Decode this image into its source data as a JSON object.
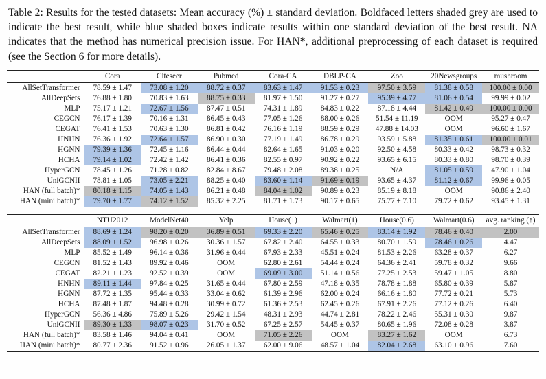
{
  "caption": "Table 2: Results for the tested datasets: Mean accuracy (%) ± standard deviation. Boldfaced letters shaded grey are used to indicate the best result, while blue shaded boxes indicate results within one standard deviation of the best result. NA indicates that the method has numerical precision issue. For HAN*, additional preprocessing of each dataset is required (see the Section 6 for more details).",
  "colors": {
    "best_bg": "#c2c2c2",
    "std_bg": "#aec5e6"
  },
  "tables": [
    {
      "columns": [
        "Cora",
        "Citeseer",
        "Pubmed",
        "Cora-CA",
        "DBLP-CA",
        "Zoo",
        "20Newsgroups",
        "mushroom"
      ],
      "rows": [
        {
          "label": "AllSetTransformer",
          "cells": [
            [
              "78.59 ± 1.47",
              ""
            ],
            [
              "73.08 ± 1.20",
              "std"
            ],
            [
              "88.72 ± 0.37",
              "std"
            ],
            [
              "83.63 ± 1.47",
              "std"
            ],
            [
              "91.53 ± 0.23",
              "std"
            ],
            [
              "97.50 ± 3.59",
              "best"
            ],
            [
              "81.38 ± 0.58",
              "std"
            ],
            [
              "100.00 ± 0.00",
              "best"
            ]
          ]
        },
        {
          "label": "AllDeepSets",
          "cells": [
            [
              "76.88 ± 1.80",
              ""
            ],
            [
              "70.83 ± 1.63",
              ""
            ],
            [
              "88.75 ± 0.33",
              "best"
            ],
            [
              "81.97 ± 1.50",
              ""
            ],
            [
              "91.27 ± 0.27",
              ""
            ],
            [
              "95.39 ± 4.77",
              "std"
            ],
            [
              "81.06 ± 0.54",
              "std"
            ],
            [
              "99.99 ± 0.02",
              ""
            ]
          ]
        },
        {
          "label": "MLP",
          "cells": [
            [
              "75.17 ± 1.21",
              ""
            ],
            [
              "72.67 ± 1.56",
              "std"
            ],
            [
              "87.47 ± 0.51",
              ""
            ],
            [
              "74.31 ± 1.89",
              ""
            ],
            [
              "84.83 ± 0.22",
              ""
            ],
            [
              "87.18 ± 4.44",
              ""
            ],
            [
              "81.42 ± 0.49",
              "best"
            ],
            [
              "100.00 ± 0.00",
              "best"
            ]
          ]
        },
        {
          "label": "CEGCN",
          "cells": [
            [
              "76.17 ± 1.39",
              ""
            ],
            [
              "70.16 ± 1.31",
              ""
            ],
            [
              "86.45 ± 0.43",
              ""
            ],
            [
              "77.05 ± 1.26",
              ""
            ],
            [
              "88.00 ± 0.26",
              ""
            ],
            [
              "51.54 ± 11.19",
              ""
            ],
            [
              "OOM",
              ""
            ],
            [
              "95.27 ± 0.47",
              ""
            ]
          ]
        },
        {
          "label": "CEGAT",
          "cells": [
            [
              "76.41 ± 1.53",
              ""
            ],
            [
              "70.63 ± 1.30",
              ""
            ],
            [
              "86.81 ± 0.42",
              ""
            ],
            [
              "76.16 ± 1.19",
              ""
            ],
            [
              "88.59 ± 0.29",
              ""
            ],
            [
              "47.88 ± 14.03",
              ""
            ],
            [
              "OOM",
              ""
            ],
            [
              "96.60 ± 1.67",
              ""
            ]
          ]
        },
        {
          "label": "HNHN",
          "cells": [
            [
              "76.36 ± 1.92",
              ""
            ],
            [
              "72.64 ± 1.57",
              "std"
            ],
            [
              "86.90 ± 0.30",
              ""
            ],
            [
              "77.19 ± 1.49",
              ""
            ],
            [
              "86.78 ± 0.29",
              ""
            ],
            [
              "93.59 ± 5.88",
              ""
            ],
            [
              "81.35 ± 0.61",
              "std"
            ],
            [
              "100.00 ± 0.01",
              "best"
            ]
          ]
        },
        {
          "label": "HGNN",
          "cells": [
            [
              "79.39 ± 1.36",
              "std"
            ],
            [
              "72.45 ± 1.16",
              ""
            ],
            [
              "86.44 ± 0.44",
              ""
            ],
            [
              "82.64 ± 1.65",
              ""
            ],
            [
              "91.03 ± 0.20",
              ""
            ],
            [
              "92.50 ± 4.58",
              ""
            ],
            [
              "80.33 ± 0.42",
              ""
            ],
            [
              "98.73 ± 0.32",
              ""
            ]
          ]
        },
        {
          "label": "HCHA",
          "cells": [
            [
              "79.14 ± 1.02",
              "std"
            ],
            [
              "72.42 ± 1.42",
              ""
            ],
            [
              "86.41 ± 0.36",
              ""
            ],
            [
              "82.55 ± 0.97",
              ""
            ],
            [
              "90.92 ± 0.22",
              ""
            ],
            [
              "93.65 ± 6.15",
              ""
            ],
            [
              "80.33 ± 0.80",
              ""
            ],
            [
              "98.70 ± 0.39",
              ""
            ]
          ]
        },
        {
          "label": "HyperGCN",
          "cells": [
            [
              "78.45 ± 1.26",
              ""
            ],
            [
              "71.28 ± 0.82",
              ""
            ],
            [
              "82.84 ± 8.67",
              ""
            ],
            [
              "79.48 ± 2.08",
              ""
            ],
            [
              "89.38 ± 0.25",
              ""
            ],
            [
              "N/A",
              ""
            ],
            [
              "81.05 ± 0.59",
              "std"
            ],
            [
              "47.90 ± 1.04",
              ""
            ]
          ]
        },
        {
          "label": "UniGCNII",
          "cells": [
            [
              "78.81 ± 1.05",
              ""
            ],
            [
              "73.05 ± 2.21",
              "std"
            ],
            [
              "88.25 ± 0.40",
              ""
            ],
            [
              "83.60 ± 1.14",
              "std"
            ],
            [
              "91.69 ± 0.19",
              "best"
            ],
            [
              "93.65 ± 4.37",
              ""
            ],
            [
              "81.12 ± 0.67",
              "std"
            ],
            [
              "99.96 ± 0.05",
              ""
            ]
          ]
        },
        {
          "label": "HAN (full batch)*",
          "cells": [
            [
              "80.18 ± 1.15",
              "best"
            ],
            [
              "74.05 ± 1.43",
              "std"
            ],
            [
              "86.21 ± 0.48",
              ""
            ],
            [
              "84.04 ± 1.02",
              "best"
            ],
            [
              "90.89 ± 0.23",
              ""
            ],
            [
              "85.19 ± 8.18",
              ""
            ],
            [
              "OOM",
              ""
            ],
            [
              "90.86 ± 2.40",
              ""
            ]
          ]
        },
        {
          "label": "HAN (mini batch)*",
          "cells": [
            [
              "79.70 ± 1.77",
              "std"
            ],
            [
              "74.12 ± 1.52",
              "best"
            ],
            [
              "85.32 ± 2.25",
              ""
            ],
            [
              "81.71 ± 1.73",
              ""
            ],
            [
              "90.17 ± 0.65",
              ""
            ],
            [
              "75.77 ± 7.10",
              ""
            ],
            [
              "79.72 ± 0.62",
              ""
            ],
            [
              "93.45 ± 1.31",
              ""
            ]
          ]
        }
      ]
    },
    {
      "columns": [
        "NTU2012",
        "ModelNet40",
        "Yelp",
        "House(1)",
        "Walmart(1)",
        "House(0.6)",
        "Walmart(0.6)",
        "avg. ranking (↑)"
      ],
      "rows": [
        {
          "label": "AllSetTransformer",
          "cells": [
            [
              "88.69 ± 1.24",
              "std"
            ],
            [
              "98.20 ± 0.20",
              "best"
            ],
            [
              "36.89 ± 0.51",
              "best"
            ],
            [
              "69.33 ± 2.20",
              "std"
            ],
            [
              "65.46 ± 0.25",
              "best"
            ],
            [
              "83.14 ± 1.92",
              "std"
            ],
            [
              "78.46 ± 0.40",
              "best"
            ],
            [
              "2.00",
              "best"
            ]
          ]
        },
        {
          "label": "AllDeepSets",
          "cells": [
            [
              "88.09 ± 1.52",
              "std"
            ],
            [
              "96.98 ± 0.26",
              ""
            ],
            [
              "30.36 ± 1.57",
              ""
            ],
            [
              "67.82 ± 2.40",
              ""
            ],
            [
              "64.55 ± 0.33",
              ""
            ],
            [
              "80.70 ± 1.59",
              ""
            ],
            [
              "78.46 ± 0.26",
              "std"
            ],
            [
              "4.47",
              ""
            ]
          ]
        },
        {
          "label": "MLP",
          "cells": [
            [
              "85.52 ± 1.49",
              ""
            ],
            [
              "96.14 ± 0.36",
              ""
            ],
            [
              "31.96 ± 0.44",
              ""
            ],
            [
              "67.93 ± 2.33",
              ""
            ],
            [
              "45.51 ± 0.24",
              ""
            ],
            [
              "81.53 ± 2.26",
              ""
            ],
            [
              "63.28 ± 0.37",
              ""
            ],
            [
              "6.27",
              ""
            ]
          ]
        },
        {
          "label": "CEGCN",
          "cells": [
            [
              "81.52 ± 1.43",
              ""
            ],
            [
              "89.92 ± 0.46",
              ""
            ],
            [
              "OOM",
              ""
            ],
            [
              "62.80 ± 2.61",
              ""
            ],
            [
              "54.44 ± 0.24",
              ""
            ],
            [
              "64.36 ± 2.41",
              ""
            ],
            [
              "59.78 ± 0.32",
              ""
            ],
            [
              "9.66",
              ""
            ]
          ]
        },
        {
          "label": "CEGAT",
          "cells": [
            [
              "82.21 ± 1.23",
              ""
            ],
            [
              "92.52 ± 0.39",
              ""
            ],
            [
              "OOM",
              ""
            ],
            [
              "69.09 ± 3.00",
              "std"
            ],
            [
              "51.14 ± 0.56",
              ""
            ],
            [
              "77.25 ± 2.53",
              ""
            ],
            [
              "59.47 ± 1.05",
              ""
            ],
            [
              "8.80",
              ""
            ]
          ]
        },
        {
          "label": "HNHN",
          "cells": [
            [
              "89.11 ± 1.44",
              "std"
            ],
            [
              "97.84 ± 0.25",
              ""
            ],
            [
              "31.65 ± 0.44",
              ""
            ],
            [
              "67.80 ± 2.59",
              ""
            ],
            [
              "47.18 ± 0.35",
              ""
            ],
            [
              "78.78 ± 1.88",
              ""
            ],
            [
              "65.80 ± 0.39",
              ""
            ],
            [
              "5.87",
              ""
            ]
          ]
        },
        {
          "label": "HGNN",
          "cells": [
            [
              "87.72 ± 1.35",
              ""
            ],
            [
              "95.44 ± 0.33",
              ""
            ],
            [
              "33.04 ± 0.62",
              ""
            ],
            [
              "61.39 ± 2.96",
              ""
            ],
            [
              "62.00 ± 0.24",
              ""
            ],
            [
              "66.16 ± 1.80",
              ""
            ],
            [
              "77.72 ± 0.21",
              ""
            ],
            [
              "5.73",
              ""
            ]
          ]
        },
        {
          "label": "HCHA",
          "cells": [
            [
              "87.48 ± 1.87",
              ""
            ],
            [
              "94.48 ± 0.28",
              ""
            ],
            [
              "30.99 ± 0.72",
              ""
            ],
            [
              "61.36 ± 2.53",
              ""
            ],
            [
              "62.45 ± 0.26",
              ""
            ],
            [
              "67.91 ± 2.26",
              ""
            ],
            [
              "77.12 ± 0.26",
              ""
            ],
            [
              "6.40",
              ""
            ]
          ]
        },
        {
          "label": "HyperGCN",
          "cells": [
            [
              "56.36 ± 4.86",
              ""
            ],
            [
              "75.89 ± 5.26",
              ""
            ],
            [
              "29.42 ± 1.54",
              ""
            ],
            [
              "48.31 ± 2.93",
              ""
            ],
            [
              "44.74 ± 2.81",
              ""
            ],
            [
              "78.22 ± 2.46",
              ""
            ],
            [
              "55.31 ± 0.30",
              ""
            ],
            [
              "9.87",
              ""
            ]
          ]
        },
        {
          "label": "UniGCNII",
          "cells": [
            [
              "89.30 ± 1.33",
              "best"
            ],
            [
              "98.07 ± 0.23",
              "std"
            ],
            [
              "31.70 ± 0.52",
              ""
            ],
            [
              "67.25 ± 2.57",
              ""
            ],
            [
              "54.45 ± 0.37",
              ""
            ],
            [
              "80.65 ± 1.96",
              ""
            ],
            [
              "72.08 ± 0.28",
              ""
            ],
            [
              "3.87",
              ""
            ]
          ]
        },
        {
          "label": "HAN (full batch)*",
          "cells": [
            [
              "83.58 ± 1.46",
              ""
            ],
            [
              "94.04 ± 0.41",
              ""
            ],
            [
              "OOM",
              ""
            ],
            [
              "71.05 ± 2.26",
              "best"
            ],
            [
              "OOM",
              ""
            ],
            [
              "83.27 ± 1.62",
              "best"
            ],
            [
              "OOM",
              ""
            ],
            [
              "6.73",
              ""
            ]
          ]
        },
        {
          "label": "HAN (mini batch)*",
          "cells": [
            [
              "80.77 ± 2.36",
              ""
            ],
            [
              "91.52 ± 0.96",
              ""
            ],
            [
              "26.05 ± 1.37",
              ""
            ],
            [
              "62.00 ± 9.06",
              ""
            ],
            [
              "48.57 ± 1.04",
              ""
            ],
            [
              "82.04 ± 2.68",
              "std"
            ],
            [
              "63.10 ± 0.96",
              ""
            ],
            [
              "7.60",
              ""
            ]
          ]
        }
      ]
    }
  ]
}
